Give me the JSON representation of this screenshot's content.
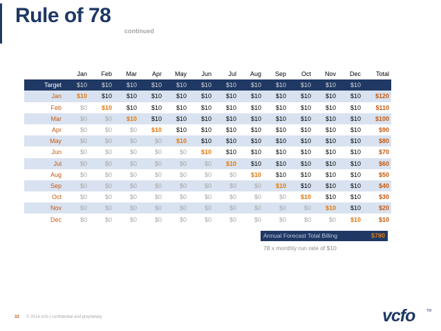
{
  "title": "Rule of 78",
  "subtitle": "continued",
  "table": {
    "months": [
      "Jan",
      "Feb",
      "Mar",
      "Apr",
      "May",
      "Jun",
      "Jul",
      "Aug",
      "Sep",
      "Oct",
      "Nov",
      "Dec"
    ],
    "total_header": "Total",
    "target_label": "Target",
    "target_values": [
      "$10",
      "$10",
      "$10",
      "$10",
      "$10",
      "$10",
      "$10",
      "$10",
      "$10",
      "$10",
      "$10",
      "$10"
    ],
    "rows": [
      {
        "label": "Jan",
        "total": "$120"
      },
      {
        "label": "Feb",
        "total": "$110"
      },
      {
        "label": "Mar",
        "total": "$100"
      },
      {
        "label": "Apr",
        "total": "$90"
      },
      {
        "label": "May",
        "total": "$80"
      },
      {
        "label": "Jun",
        "total": "$70"
      },
      {
        "label": "Jul",
        "total": "$60"
      },
      {
        "label": "Aug",
        "total": "$50"
      },
      {
        "label": "Sep",
        "total": "$40"
      },
      {
        "label": "Oct",
        "total": "$30"
      },
      {
        "label": "Nov",
        "total": "$20"
      },
      {
        "label": "Dec",
        "total": "$10"
      }
    ],
    "zero_value": "$0",
    "ten_value": "$10"
  },
  "annual": {
    "label": "Annual Forecast Total Billing",
    "value": "$780"
  },
  "note": "78 x monthly run rate of $10",
  "footer": {
    "page_number": "33",
    "text": "© 2014 vcfo  |  confidential and proprietary"
  },
  "logo": {
    "text": "vcfo",
    "tm": "TM"
  },
  "colors": {
    "navy": "#1f3864",
    "orange": "#e07a10",
    "shade": "#d9e2f0"
  }
}
